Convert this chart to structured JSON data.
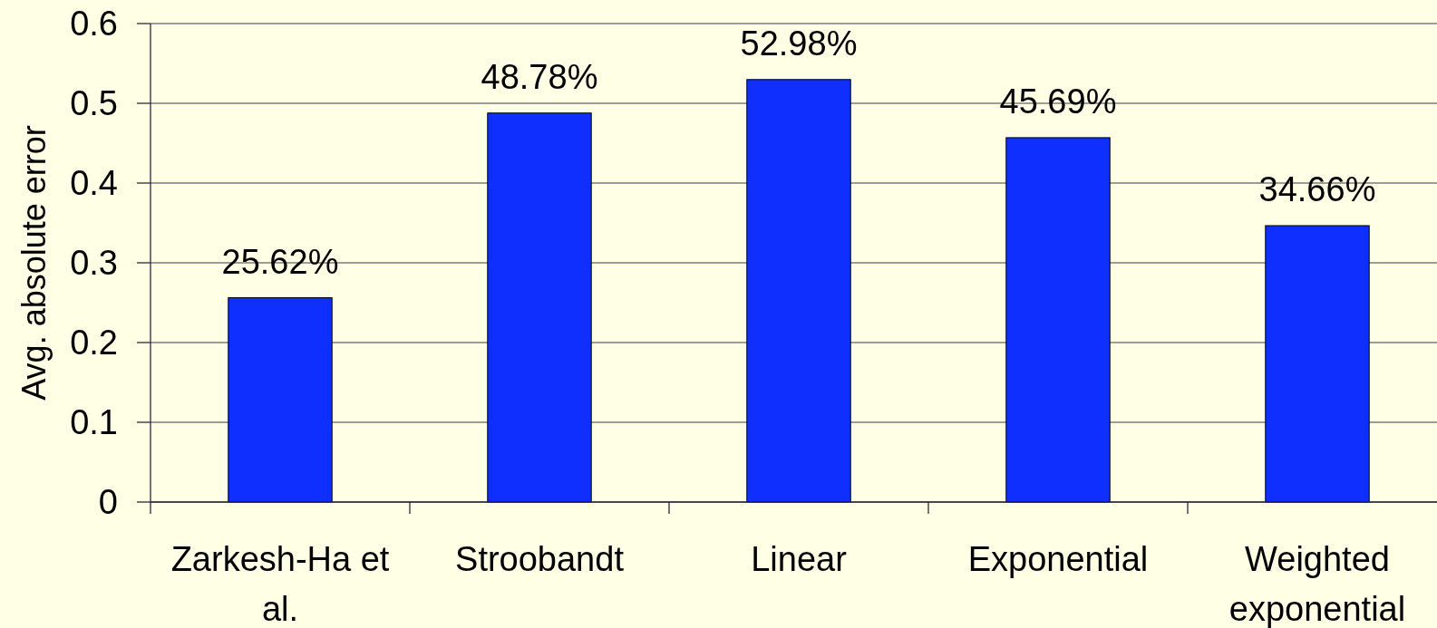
{
  "chart_data": {
    "type": "bar",
    "ylabel": "Avg. absolute error",
    "categories": [
      "Zarkesh-Ha et al.",
      "Stroobandt",
      "Linear",
      "Exponential",
      "Weighted exponential"
    ],
    "values": [
      0.2562,
      0.4878,
      0.5298,
      0.4569,
      0.3466
    ],
    "color": "#0f2fff",
    "value_labels": [
      "25.62%",
      "48.78%",
      "52.98%",
      "45.69%",
      "34.66%"
    ],
    "ylim": [
      0,
      0.6
    ],
    "yticks": [
      0,
      0.1,
      0.2,
      0.3,
      0.4,
      0.5,
      0.6
    ],
    "grid": "y"
  }
}
